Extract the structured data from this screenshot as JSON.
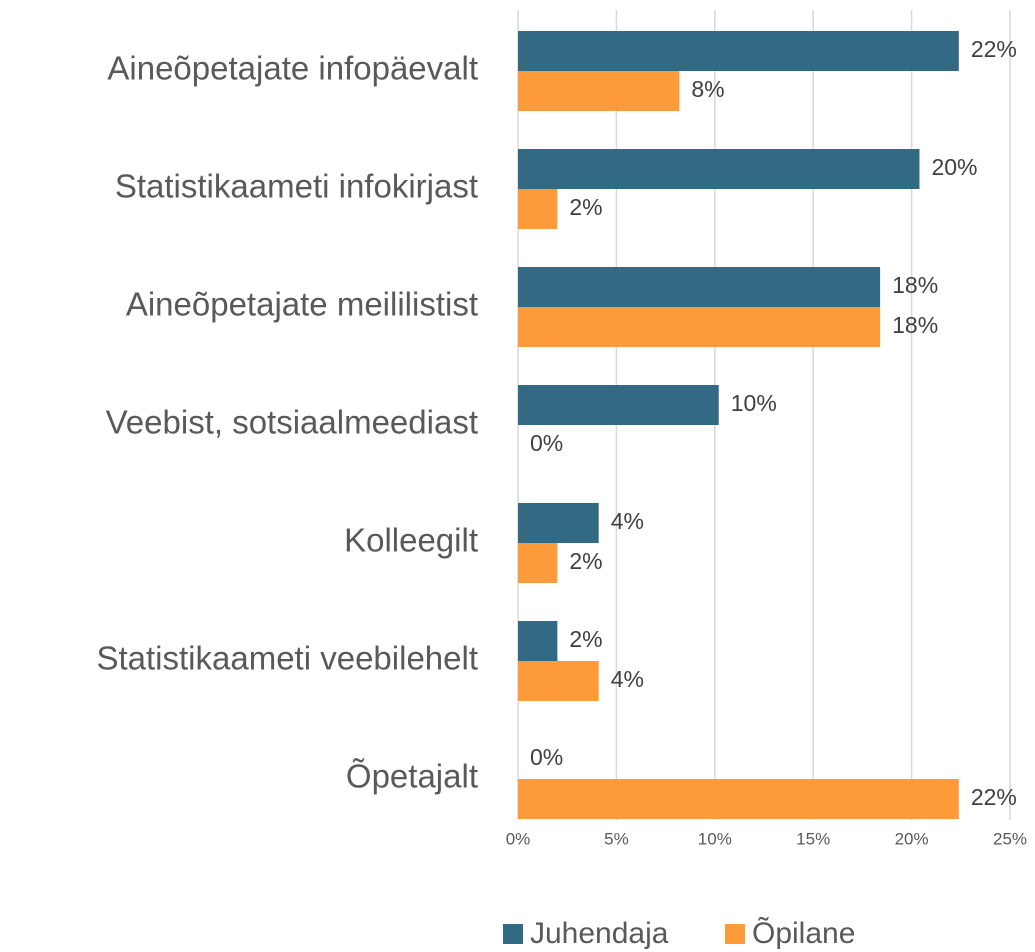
{
  "chart_data": {
    "type": "bar",
    "orientation": "horizontal",
    "categories": [
      "Aineõpetajate infopäevalt",
      "Statistikaameti infokirjast",
      "Aineõpetajate meililistist",
      "Veebist, sotsiaalmeediast",
      "Kolleegilt",
      "Statistikaameti veebilehelt",
      "Õpetajalt"
    ],
    "series": [
      {
        "name": "Juhendaja",
        "color": "#316a82",
        "values": [
          22.4,
          20.4,
          18.4,
          10.2,
          4.1,
          2.0,
          0
        ],
        "value_labels": [
          "22%",
          "20%",
          "18%",
          "10%",
          "4%",
          "2%",
          "0%"
        ]
      },
      {
        "name": "Õpilane",
        "color": "#fd9b3a",
        "values": [
          8.2,
          2.0,
          18.4,
          0,
          2.0,
          4.1,
          22.4
        ],
        "value_labels": [
          "8%",
          "2%",
          "18%",
          "0%",
          "2%",
          "4%",
          "22%"
        ]
      }
    ],
    "xlim": [
      0,
      25
    ],
    "xticks": [
      {
        "value": 0,
        "label": "0%"
      },
      {
        "value": 5,
        "label": "5%"
      },
      {
        "value": 10,
        "label": "10%"
      },
      {
        "value": 15,
        "label": "15%"
      },
      {
        "value": 20,
        "label": "20%"
      },
      {
        "value": 25,
        "label": "25%"
      }
    ],
    "grid": true,
    "legend": "bottom"
  }
}
